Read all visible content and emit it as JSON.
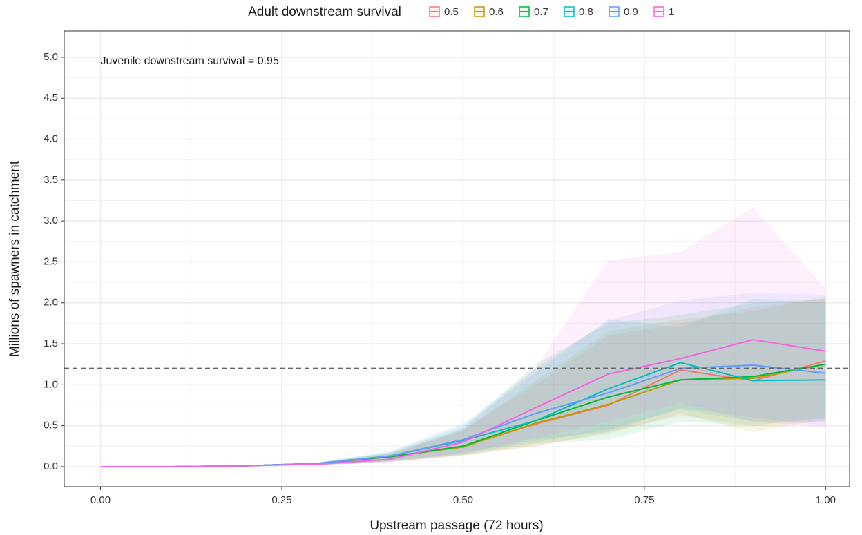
{
  "chart_data": {
    "type": "line",
    "legend_title": "Adult downstream survival",
    "legend_position": "top",
    "annotation": "Juvenile downstream survival = 0.95",
    "x_label": "Upstream passage (72 hours)",
    "y_label": "Millions of spawners in catchment",
    "x": [
      0,
      0.1,
      0.2,
      0.3,
      0.4,
      0.5,
      0.6,
      0.7,
      0.8,
      0.9,
      1
    ],
    "reference_line": 1.2,
    "grid": true,
    "xlim": [
      -0.05,
      1.033
    ],
    "ylim": [
      -0.245,
      5.32
    ],
    "xticks": [
      {
        "value": 0,
        "label": "0.00"
      },
      {
        "value": 0.25,
        "label": "0.25"
      },
      {
        "value": 0.5,
        "label": "0.50"
      },
      {
        "value": 0.75,
        "label": "0.75"
      },
      {
        "value": 1,
        "label": "1.00"
      }
    ],
    "yticks": [
      {
        "value": 0,
        "label": "0.0"
      },
      0.5,
      {
        "value": 1,
        "label": "1.0"
      },
      1.5,
      {
        "value": 2,
        "label": "2.0"
      },
      2.5,
      {
        "value": 3,
        "label": "3.0"
      },
      3.5,
      {
        "value": 4,
        "label": "4.0"
      },
      4.5,
      {
        "value": 5,
        "label": "5.0"
      }
    ],
    "series": [
      {
        "name": "0.5",
        "color": "#F8766D",
        "values": [
          0,
          0,
          0.01,
          0.04,
          0.12,
          0.25,
          0.52,
          0.75,
          1.18,
          1.05,
          1.29
        ],
        "lower": [
          0,
          0,
          0.01,
          0.02,
          0.06,
          0.13,
          0.25,
          0.42,
          0.62,
          0.5,
          0.55
        ],
        "upper": [
          0,
          0,
          0.01,
          0.05,
          0.16,
          0.45,
          1.0,
          1.6,
          1.75,
          1.95,
          2.05
        ]
      },
      {
        "name": "0.6",
        "color": "#B79F00",
        "values": [
          0,
          0,
          0.01,
          0.04,
          0.12,
          0.24,
          0.53,
          0.76,
          1.06,
          1.08,
          1.25
        ],
        "lower": [
          0,
          0,
          0.01,
          0.02,
          0.06,
          0.14,
          0.25,
          0.4,
          0.65,
          0.42,
          0.58
        ],
        "upper": [
          0,
          0,
          0.01,
          0.05,
          0.16,
          0.44,
          1.05,
          1.65,
          1.8,
          1.9,
          2.08
        ]
      },
      {
        "name": "0.7",
        "color": "#00BA38",
        "values": [
          0,
          0,
          0.01,
          0.04,
          0.12,
          0.25,
          0.56,
          0.85,
          1.06,
          1.1,
          1.25
        ],
        "lower": [
          0,
          0,
          0.01,
          0.02,
          0.06,
          0.14,
          0.28,
          0.33,
          0.55,
          0.5,
          0.6
        ],
        "upper": [
          0,
          0,
          0.01,
          0.05,
          0.17,
          0.47,
          1.25,
          1.75,
          1.85,
          2.0,
          2.05
        ]
      },
      {
        "name": "0.8",
        "color": "#00BFC4",
        "values": [
          0,
          0,
          0.01,
          0.04,
          0.13,
          0.32,
          0.56,
          0.95,
          1.27,
          1.05,
          1.06
        ],
        "lower": [
          0,
          0,
          0.01,
          0.02,
          0.07,
          0.16,
          0.3,
          0.45,
          0.7,
          0.55,
          0.55
        ],
        "upper": [
          0,
          0,
          0.01,
          0.05,
          0.18,
          0.5,
          1.15,
          1.8,
          1.7,
          2.05,
          2.0
        ]
      },
      {
        "name": "0.9",
        "color": "#619CFF",
        "values": [
          0,
          0,
          0.01,
          0.04,
          0.13,
          0.33,
          0.65,
          0.9,
          1.2,
          1.24,
          1.14
        ],
        "lower": [
          0,
          0,
          0.01,
          0.02,
          0.07,
          0.17,
          0.33,
          0.42,
          0.72,
          0.6,
          0.5
        ],
        "upper": [
          0,
          0,
          0.01,
          0.05,
          0.19,
          0.53,
          1.2,
          1.78,
          2.03,
          2.12,
          2.1
        ]
      },
      {
        "name": "1",
        "color": "#F564E3",
        "values": [
          0,
          0,
          0.01,
          0.03,
          0.09,
          0.3,
          0.72,
          1.13,
          1.32,
          1.55,
          1.41
        ],
        "lower": [
          0,
          0,
          0.01,
          0.02,
          0.05,
          0.15,
          0.35,
          0.55,
          0.78,
          0.55,
          0.48
        ],
        "upper": [
          0,
          0,
          0.01,
          0.05,
          0.15,
          0.45,
          1.2,
          2.52,
          2.62,
          3.17,
          2.17
        ]
      }
    ]
  }
}
